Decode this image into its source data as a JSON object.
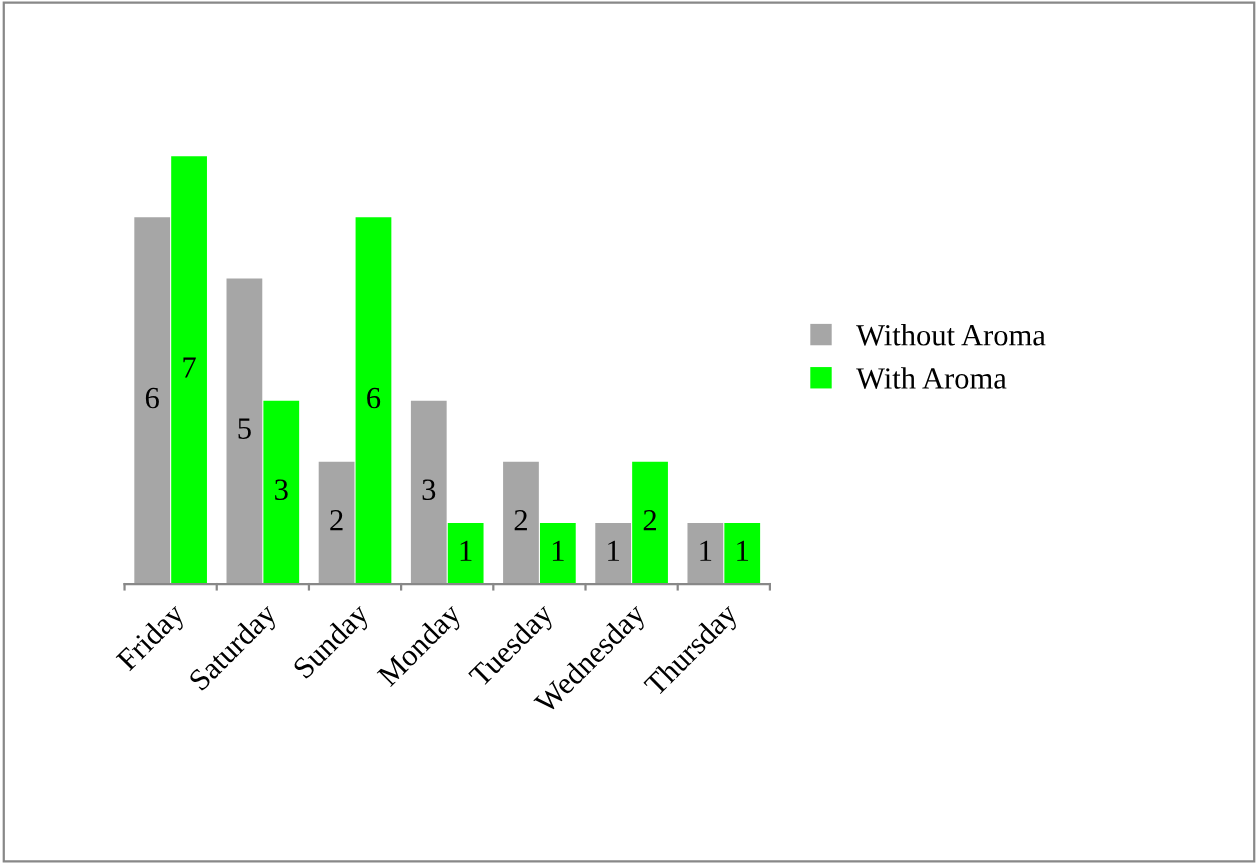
{
  "chart_data": {
    "type": "bar",
    "categories": [
      "Friday",
      "Saturday",
      "Sunday",
      "Monday",
      "Tuesday",
      "Wednesday",
      "Thursday"
    ],
    "series": [
      {
        "name": "Without Aroma",
        "color": "#a6a6a6",
        "values": [
          6,
          5,
          2,
          3,
          2,
          1,
          1
        ]
      },
      {
        "name": "With Aroma",
        "color": "#00ff00",
        "values": [
          7,
          3,
          6,
          1,
          1,
          2,
          1
        ]
      }
    ],
    "data_labels": true,
    "legend": "right"
  }
}
